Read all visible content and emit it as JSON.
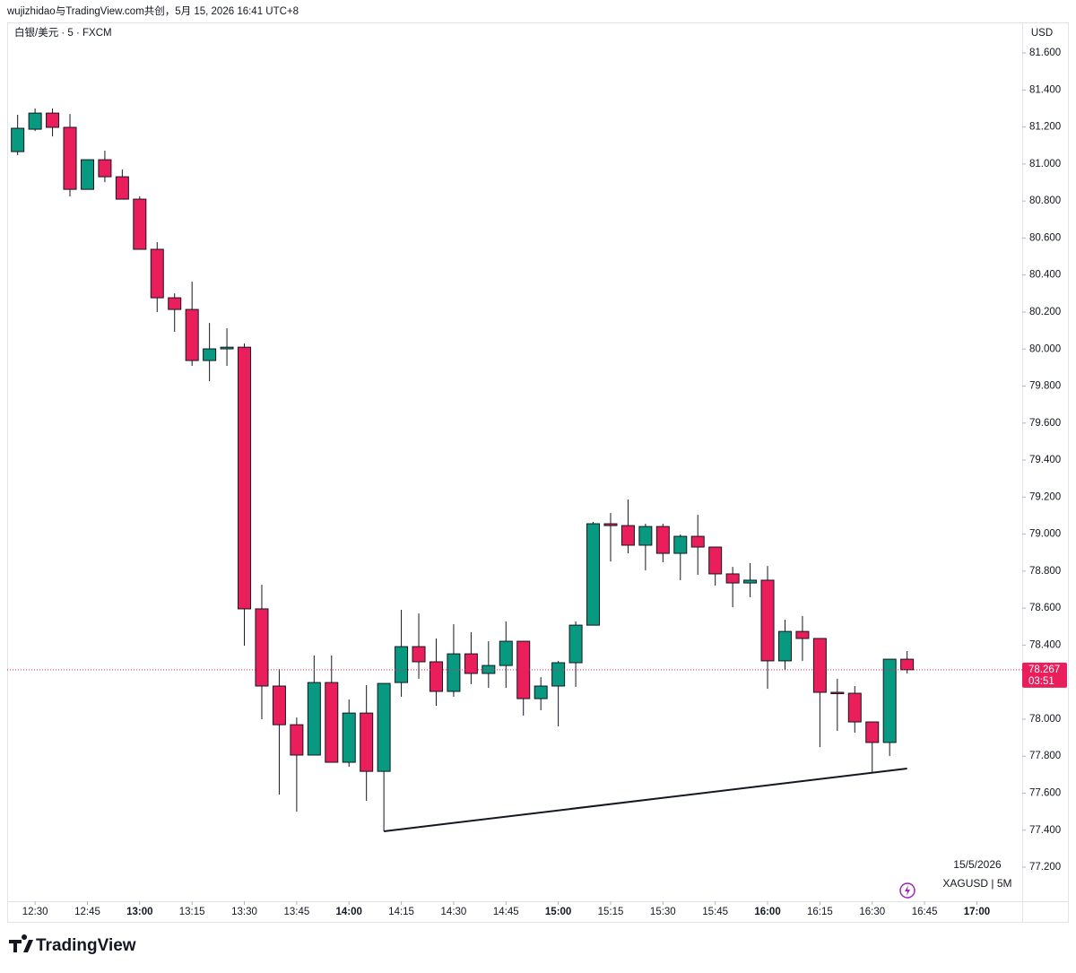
{
  "header": "wujizhidao与TradingView.com共创，5月 15, 2026 16:41 UTC+8",
  "currency": "USD",
  "date": "15/5/2026",
  "ticker": "XAGUSD | 5M",
  "brand": "TradingView",
  "chart_data": {
    "type": "candlestick",
    "title": "白银/美元 · 5 · FXCM",
    "up_color": "#089981",
    "down_color": "#e91e5a",
    "x": [
      "12:25",
      "12:30",
      "12:35",
      "12:40",
      "12:45",
      "12:50",
      "12:55",
      "13:00",
      "13:05",
      "13:10",
      "13:15",
      "13:20",
      "13:25",
      "13:30",
      "13:35",
      "13:40",
      "13:45",
      "13:50",
      "13:55",
      "14:00",
      "14:05",
      "14:10",
      "14:15",
      "14:20",
      "14:25",
      "14:30",
      "14:35",
      "14:40",
      "14:45",
      "14:50",
      "14:55",
      "15:00",
      "15:05",
      "15:10",
      "15:15",
      "15:20",
      "15:25",
      "15:30",
      "15:35",
      "15:40",
      "15:45",
      "15:50",
      "15:55",
      "16:00",
      "16:05",
      "16:10",
      "16:15",
      "16:20",
      "16:25",
      "16:30",
      "16:35",
      "16:40"
    ],
    "open": [
      81.067,
      81.188,
      81.275,
      81.198,
      80.863,
      81.023,
      80.931,
      80.81,
      80.539,
      80.277,
      80.214,
      79.938,
      80.001,
      80.01,
      78.596,
      78.179,
      77.97,
      77.806,
      78.198,
      77.767,
      78.033,
      77.718,
      78.198,
      78.392,
      78.31,
      78.15,
      78.353,
      78.247,
      78.29,
      78.421,
      78.111,
      78.179,
      78.305,
      78.508,
      79.056,
      79.046,
      78.94,
      79.041,
      78.896,
      78.988,
      78.93,
      78.785,
      78.736,
      78.751,
      78.315,
      78.474,
      78.436,
      78.145,
      78.14,
      77.985,
      77.874,
      78.324
    ],
    "high": [
      81.266,
      81.3,
      81.3,
      81.27,
      81.023,
      81.072,
      80.97,
      80.825,
      80.578,
      80.301,
      80.364,
      80.141,
      80.112,
      80.03,
      78.726,
      78.271,
      78.009,
      78.344,
      78.344,
      78.106,
      78.184,
      78.193,
      78.591,
      78.571,
      78.436,
      78.513,
      78.47,
      78.421,
      78.528,
      78.421,
      78.227,
      78.315,
      78.528,
      79.066,
      79.114,
      79.187,
      79.056,
      79.056,
      78.998,
      79.104,
      78.93,
      78.823,
      78.843,
      78.828,
      78.537,
      78.557,
      78.436,
      78.218,
      78.179,
      77.985,
      78.324,
      78.368
    ],
    "low": [
      81.048,
      81.178,
      81.149,
      80.825,
      80.863,
      80.902,
      80.81,
      80.539,
      80.2,
      80.093,
      79.909,
      79.826,
      79.909,
      78.397,
      78.0,
      77.592,
      77.5,
      77.806,
      77.767,
      77.743,
      77.559,
      77.394,
      78.121,
      78.218,
      78.072,
      78.121,
      78.189,
      78.169,
      78.169,
      78.019,
      78.048,
      77.961,
      78.174,
      78.508,
      78.852,
      78.896,
      78.804,
      78.848,
      78.751,
      78.78,
      78.722,
      78.605,
      78.659,
      78.164,
      78.266,
      78.315,
      77.849,
      77.937,
      77.927,
      77.714,
      77.801,
      78.247
    ],
    "close": [
      81.193,
      81.275,
      81.198,
      80.863,
      81.023,
      80.931,
      80.81,
      80.539,
      80.277,
      80.214,
      79.938,
      80.001,
      80.01,
      78.596,
      78.179,
      77.97,
      77.806,
      78.198,
      77.767,
      78.033,
      77.718,
      78.193,
      78.392,
      78.31,
      78.15,
      78.353,
      78.247,
      78.29,
      78.421,
      78.111,
      78.179,
      78.305,
      78.508,
      79.056,
      79.046,
      78.94,
      79.041,
      78.896,
      78.988,
      78.93,
      78.785,
      78.736,
      78.751,
      78.315,
      78.474,
      78.436,
      78.145,
      78.14,
      77.985,
      77.874,
      78.324,
      78.267
    ],
    "xlim": [
      "12:22",
      "17:13"
    ],
    "xticks": [
      "12:30",
      "12:45",
      "13:00",
      "13:15",
      "13:30",
      "13:45",
      "14:00",
      "14:15",
      "14:30",
      "14:45",
      "15:00",
      "15:15",
      "15:30",
      "15:45",
      "16:00",
      "16:15",
      "16:30",
      "16:45",
      "17:00"
    ],
    "ylim": [
      77.016,
      81.765
    ],
    "yticks": [
      {
        "value": 77.2,
        "label": "77.200"
      },
      {
        "value": 77.4,
        "label": "77.400"
      },
      {
        "value": 77.6,
        "label": "77.600"
      },
      {
        "value": 77.8,
        "label": "77.800"
      },
      {
        "value": 78.0,
        "label": "78.000"
      },
      {
        "value": 78.2,
        "label": "78.200"
      },
      {
        "value": 78.4,
        "label": "78.400"
      },
      {
        "value": 78.6,
        "label": "78.600"
      },
      {
        "value": 78.8,
        "label": "78.800"
      },
      {
        "value": 79.0,
        "label": "79.000"
      },
      {
        "value": 79.2,
        "label": "79.200"
      },
      {
        "value": 79.4,
        "label": "79.400"
      },
      {
        "value": 79.6,
        "label": "79.600"
      },
      {
        "value": 79.8,
        "label": "79.800"
      },
      {
        "value": 80.0,
        "label": "80.000"
      },
      {
        "value": 80.2,
        "label": "80.200"
      },
      {
        "value": 80.4,
        "label": "80.400"
      },
      {
        "value": 80.6,
        "label": "80.600"
      },
      {
        "value": 80.8,
        "label": "80.800"
      },
      {
        "value": 81.0,
        "label": "81.000"
      },
      {
        "value": 81.2,
        "label": "81.200"
      },
      {
        "value": 81.4,
        "label": "81.400"
      },
      {
        "value": 81.6,
        "label": "81.600"
      }
    ],
    "last_price": {
      "value": 78.267,
      "countdown": "03:51"
    },
    "trendline": {
      "x": [
        "14:10",
        "16:40"
      ],
      "y": [
        77.394,
        77.733
      ]
    }
  }
}
